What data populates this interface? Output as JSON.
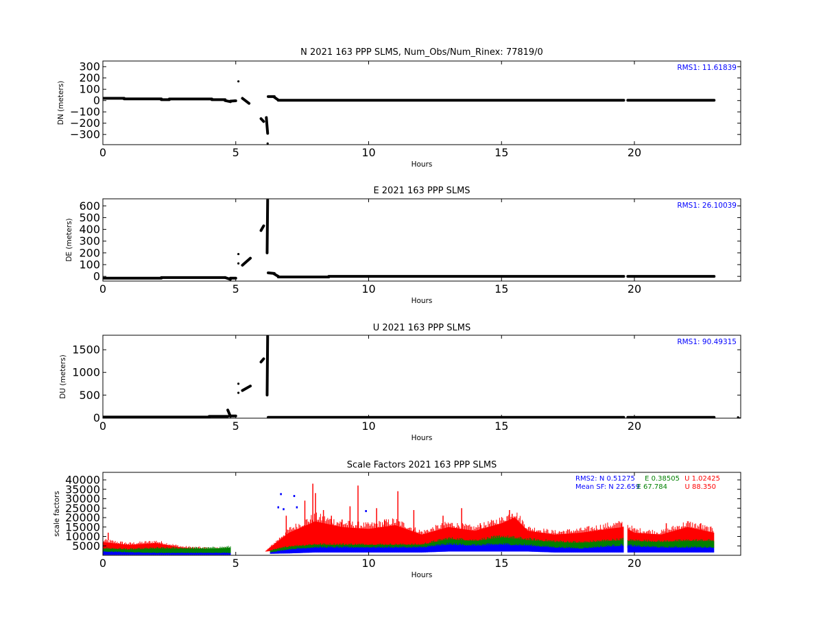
{
  "figure": {
    "background": "#ffffff"
  },
  "chart_data": [
    {
      "id": "north",
      "type": "scatter",
      "title": "N 2021 163 PPP  SLMS, Num_Obs/Num_Rinex: 77819/0",
      "xlabel": "Hours",
      "ylabel": "DN (meters)",
      "xlim": [
        0,
        24
      ],
      "ylim": [
        -390,
        350
      ],
      "xticks": [
        0,
        5,
        10,
        15,
        20
      ],
      "yticks": [
        -300,
        -200,
        -100,
        0,
        100,
        200,
        300
      ],
      "annotations": [
        {
          "text": "RMS1: 11.61839",
          "color": "#0000ff"
        }
      ],
      "series": [
        {
          "color": "#000000",
          "segments": [
            {
              "x": [
                0,
                0.8
              ],
              "y": [
                20,
                20
              ]
            },
            {
              "x": [
                0.8,
                2.2
              ],
              "y": [
                15,
                15
              ]
            },
            {
              "x": [
                2.2,
                2.5
              ],
              "y": [
                8,
                8
              ]
            },
            {
              "x": [
                2.5,
                4.1
              ],
              "y": [
                14,
                14
              ]
            },
            {
              "x": [
                4.1,
                4.6
              ],
              "y": [
                8,
                8
              ]
            },
            {
              "x": [
                4.6,
                4.8
              ],
              "y": [
                0,
                -10
              ]
            },
            {
              "x": [
                4.8,
                5.0
              ],
              "y": [
                -5,
                -2
              ]
            },
            {
              "x": [
                5.25,
                5.5
              ],
              "y": [
                20,
                -25
              ]
            },
            {
              "x": [
                5.95,
                6.05
              ],
              "y": [
                -160,
                -185
              ]
            },
            {
              "x": [
                6.15,
                6.2
              ],
              "y": [
                -150,
                -290
              ]
            },
            {
              "x": [
                6.22,
                6.45
              ],
              "y": [
                35,
                35
              ]
            },
            {
              "x": [
                6.45,
                6.6
              ],
              "y": [
                30,
                5
              ]
            },
            {
              "x": [
                6.6,
                19.6
              ],
              "y": [
                3,
                3
              ]
            },
            {
              "x": [
                19.75,
                23.0
              ],
              "y": [
                3,
                3
              ]
            }
          ],
          "points": {
            "x": [
              5.1,
              4.95,
              6.2
            ],
            "y": [
              170,
              0,
              -380
            ]
          }
        }
      ]
    },
    {
      "id": "east",
      "type": "scatter",
      "title": "E 2021 163 PPP  SLMS",
      "xlabel": "Hours",
      "ylabel": "DE (meters)",
      "xlim": [
        0,
        24
      ],
      "ylim": [
        -40,
        660
      ],
      "xticks": [
        0,
        5,
        10,
        15,
        20
      ],
      "yticks": [
        0,
        100,
        200,
        300,
        400,
        500,
        600
      ],
      "annotations": [
        {
          "text": "RMS1: 26.10039",
          "color": "#0000ff"
        }
      ],
      "series": [
        {
          "color": "#000000",
          "segments": [
            {
              "x": [
                0,
                2.2
              ],
              "y": [
                -15,
                -15
              ]
            },
            {
              "x": [
                2.2,
                4.6
              ],
              "y": [
                -10,
                -10
              ]
            },
            {
              "x": [
                4.6,
                4.8
              ],
              "y": [
                -10,
                -25
              ]
            },
            {
              "x": [
                4.8,
                5.0
              ],
              "y": [
                -15,
                -15
              ]
            },
            {
              "x": [
                5.25,
                5.55
              ],
              "y": [
                95,
                155
              ]
            },
            {
              "x": [
                5.95,
                6.05
              ],
              "y": [
                390,
                430
              ]
            },
            {
              "x": [
                6.18,
                6.2
              ],
              "y": [
                200,
                650
              ]
            },
            {
              "x": [
                6.22,
                6.45
              ],
              "y": [
                30,
                25
              ]
            },
            {
              "x": [
                6.45,
                6.6
              ],
              "y": [
                20,
                0
              ]
            },
            {
              "x": [
                6.6,
                8.5
              ],
              "y": [
                -5,
                -5
              ]
            },
            {
              "x": [
                8.5,
                19.6
              ],
              "y": [
                0,
                0
              ]
            },
            {
              "x": [
                19.75,
                23.0
              ],
              "y": [
                0,
                0
              ]
            }
          ],
          "points": {
            "x": [
              5.1,
              5.1
            ],
            "y": [
              110,
              190
            ]
          }
        }
      ]
    },
    {
      "id": "up",
      "type": "scatter",
      "title": "U 2021 163 PPP  SLMS",
      "xlabel": "Hours",
      "ylabel": "DU (meters)",
      "xlim": [
        0,
        24
      ],
      "ylim": [
        -10,
        1820
      ],
      "xticks": [
        0,
        5,
        10,
        15,
        20
      ],
      "yticks": [
        0,
        500,
        1000,
        1500
      ],
      "annotations": [
        {
          "text": "RMS1: 90.49315",
          "color": "#0000ff"
        }
      ],
      "series": [
        {
          "color": "#000000",
          "segments": [
            {
              "x": [
                0,
                4.0
              ],
              "y": [
                15,
                15
              ]
            },
            {
              "x": [
                4.0,
                4.7
              ],
              "y": [
                30,
                30
              ]
            },
            {
              "x": [
                4.7,
                4.8
              ],
              "y": [
                170,
                30
              ]
            },
            {
              "x": [
                4.8,
                5.0
              ],
              "y": [
                40,
                40
              ]
            },
            {
              "x": [
                5.25,
                5.55
              ],
              "y": [
                600,
                700
              ]
            },
            {
              "x": [
                5.95,
                6.05
              ],
              "y": [
                1230,
                1300
              ]
            },
            {
              "x": [
                6.18,
                6.2
              ],
              "y": [
                500,
                1800
              ]
            },
            {
              "x": [
                6.22,
                19.6
              ],
              "y": [
                8,
                8
              ]
            },
            {
              "x": [
                19.75,
                23.0
              ],
              "y": [
                8,
                8
              ]
            }
          ],
          "points": {
            "x": [
              5.1,
              5.1,
              23.9
            ],
            "y": [
              550,
              750,
              10
            ]
          }
        }
      ]
    },
    {
      "id": "scale-factors",
      "type": "scatter",
      "title": "Scale Factors 2021 163 PPP  SLMS",
      "xlabel": "Hours",
      "ylabel": "scale factors",
      "xlim": [
        0,
        24
      ],
      "ylim": [
        0,
        44000
      ],
      "xticks": [
        0,
        5,
        10,
        15,
        20
      ],
      "yticks": [
        5000,
        10000,
        15000,
        20000,
        25000,
        30000,
        35000,
        40000
      ],
      "annotations": [
        {
          "text": "RMS2: N  0.51275",
          "color": "#0000ff"
        },
        {
          "text": "E  0.38505",
          "color": "#008000"
        },
        {
          "text": "U  1.02425",
          "color": "#ff0000"
        },
        {
          "text": "Mean SF: N  22.659",
          "color": "#0000ff"
        },
        {
          "text": "E  67.784",
          "color": "#008000"
        },
        {
          "text": "U  88.350",
          "color": "#ff0000"
        }
      ],
      "series": [
        {
          "color": "#ff0000",
          "bands": [
            {
              "x": [
                0,
                1,
                2,
                3,
                4,
                4.8
              ],
              "low": [
                1500,
                1500,
                1500,
                1000,
                1000,
                1000
              ],
              "high": [
                7000,
                5500,
                6500,
                4000,
                3500,
                3500
              ]
            },
            {
              "x": [
                6.1,
                7,
                8,
                9,
                10,
                11,
                12,
                13,
                14,
                15,
                15.5,
                16,
                17,
                18,
                19,
                19.6
              ],
              "low": [
                2000,
                3000,
                4000,
                4000,
                4000,
                4000,
                4000,
                5000,
                5000,
                6000,
                6000,
                5000,
                4000,
                4000,
                4000,
                4000
              ],
              "high": [
                2000,
                12000,
                18000,
                15000,
                14000,
                16000,
                11000,
                15000,
                13000,
                17000,
                20000,
                13000,
                11000,
                12000,
                14000,
                15000
              ]
            },
            {
              "x": [
                19.75,
                20,
                21,
                22,
                23
              ],
              "low": [
                4000,
                4000,
                4000,
                4000,
                4000
              ],
              "high": [
                14000,
                12000,
                11000,
                15000,
                12000
              ]
            }
          ],
          "spikes": {
            "x": [
              0.2,
              6.9,
              7.6,
              7.9,
              8.0,
              8.3,
              8.6,
              9.0,
              9.3,
              9.6,
              10.3,
              10.6,
              11.1,
              11.7,
              12.8,
              13.5,
              14.2,
              15.3,
              15.4,
              16.6,
              18.0,
              19.5,
              21.2,
              22.5
            ],
            "y": [
              12000,
              21000,
              29000,
              38000,
              33000,
              24000,
              21000,
              19000,
              26000,
              37000,
              25000,
              19000,
              34000,
              24000,
              21000,
              25000,
              17000,
              24000,
              22000,
              13000,
              12000,
              17000,
              17000,
              17000
            ]
          }
        },
        {
          "color": "#008000",
          "bands": [
            {
              "x": [
                0,
                1,
                2,
                3,
                4,
                4.8
              ],
              "low": [
                800,
                800,
                800,
                800,
                800,
                800
              ],
              "high": [
                3500,
                3000,
                3500,
                3500,
                3500,
                4000
              ]
            },
            {
              "x": [
                6.3,
                7,
                8,
                9,
                10,
                11,
                12,
                13,
                14,
                15,
                16,
                17,
                18,
                19,
                19.6
              ],
              "low": [
                1500,
                2000,
                2500,
                2500,
                3000,
                3000,
                3000,
                4500,
                4000,
                5000,
                4000,
                3500,
                3500,
                4000,
                4000
              ],
              "high": [
                2500,
                4500,
                5500,
                5500,
                5500,
                5500,
                5500,
                8500,
                7500,
                9500,
                8000,
                7000,
                6500,
                7500,
                8000
              ]
            },
            {
              "x": [
                19.75,
                20,
                21,
                22,
                23
              ],
              "low": [
                4000,
                4000,
                4000,
                4000,
                4000
              ],
              "high": [
                7500,
                7500,
                7000,
                7500,
                7500
              ]
            }
          ]
        },
        {
          "color": "#0000ff",
          "bands": [
            {
              "x": [
                0,
                1,
                2,
                3,
                4,
                4.8
              ],
              "low": [
                300,
                300,
                300,
                300,
                300,
                300
              ],
              "high": [
                1800,
                1500,
                1200,
                1200,
                1200,
                1200
              ]
            },
            {
              "x": [
                6.3,
                7,
                8,
                9,
                10,
                11,
                12,
                13,
                14,
                15,
                16,
                17,
                18,
                19,
                19.6
              ],
              "low": [
                800,
                1000,
                1500,
                1500,
                1500,
                1500,
                1500,
                2000,
                2000,
                2000,
                2000,
                1500,
                1500,
                1500,
                1500
              ],
              "high": [
                1500,
                3000,
                4000,
                4000,
                4000,
                4000,
                4000,
                5500,
                5000,
                5500,
                5000,
                4000,
                3500,
                4500,
                5000
              ]
            },
            {
              "x": [
                19.75,
                20,
                21,
                22,
                23
              ],
              "low": [
                1500,
                1500,
                1500,
                1500,
                1500
              ],
              "high": [
                5000,
                4500,
                4000,
                4000,
                4000
              ]
            }
          ],
          "spikes": {
            "x": [
              6.6,
              6.7,
              6.8,
              7.2,
              7.3,
              9.9
            ],
            "y": [
              26000,
              33000,
              25000,
              32000,
              26000,
              24000
            ]
          }
        }
      ]
    }
  ]
}
